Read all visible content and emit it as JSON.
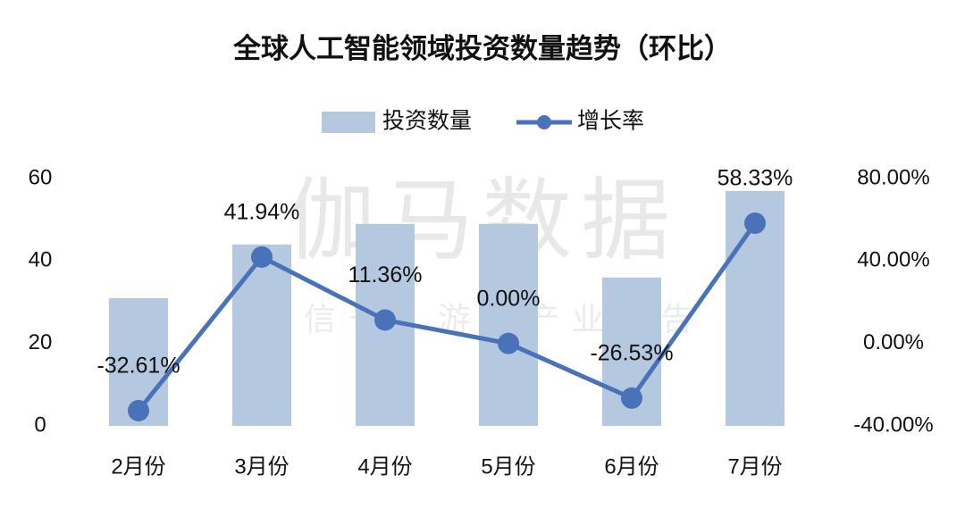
{
  "chart_data": {
    "type": "bar_line",
    "title": "全球人工智能领域投资数量趋势（环比）",
    "watermark": "伽马数据",
    "watermark_sub": "微信号：游戏产业报告",
    "categories": [
      "2月份",
      "3月份",
      "4月份",
      "5月份",
      "6月份",
      "7月份"
    ],
    "series": [
      {
        "name": "投资数量",
        "type": "bar",
        "color": "#b4c8e0",
        "values": [
          31,
          44,
          49,
          49,
          36,
          57
        ]
      },
      {
        "name": "增长率",
        "type": "line",
        "axis": "y2",
        "color": "#4a72b8",
        "values": [
          -32.61,
          41.94,
          11.36,
          0,
          -26.53,
          58.33
        ],
        "value_labels": [
          "-32.61%",
          "41.94%",
          "11.36%",
          "0.00%",
          "-26.53%",
          "58.33%"
        ]
      }
    ],
    "ylim": [
      0,
      60
    ],
    "yticks": [
      0,
      20,
      40,
      60
    ],
    "y2lim": [
      -40,
      80
    ],
    "y2ticks": [
      {
        "value": -40,
        "label": "-40.00%"
      },
      {
        "value": 0,
        "label": "0.00%"
      },
      {
        "value": 40,
        "label": "40.00%"
      },
      {
        "value": 80,
        "label": "80.00%"
      }
    ],
    "legend": "top"
  }
}
